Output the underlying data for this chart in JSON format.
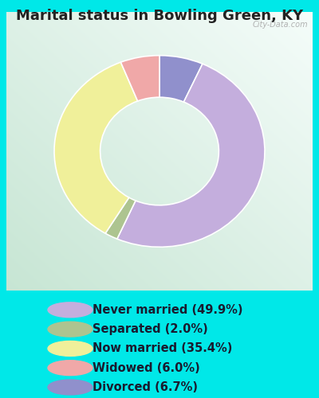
{
  "title": "Marital status in Bowling Green, KY",
  "slices": [
    49.9,
    2.0,
    35.4,
    6.0,
    6.7
  ],
  "labels": [
    "Never married (49.9%)",
    "Separated (2.0%)",
    "Now married (35.4%)",
    "Widowed (6.0%)",
    "Divorced (6.7%)"
  ],
  "colors": [
    "#c4aedd",
    "#adc490",
    "#f0f09a",
    "#f0a8a8",
    "#9090cc"
  ],
  "bg_color": "#00e8e8",
  "chart_bg_grad_left": "#c8e8d0",
  "chart_bg_grad_right": "#e8f4ec",
  "title_color": "#222222",
  "title_fontsize": 13,
  "legend_fontsize": 10.5,
  "watermark": "City-Data.com",
  "outer_r": 1.1,
  "inner_r": 0.62,
  "draw_order": [
    4,
    0,
    1,
    2,
    3
  ],
  "start_angle": 90
}
